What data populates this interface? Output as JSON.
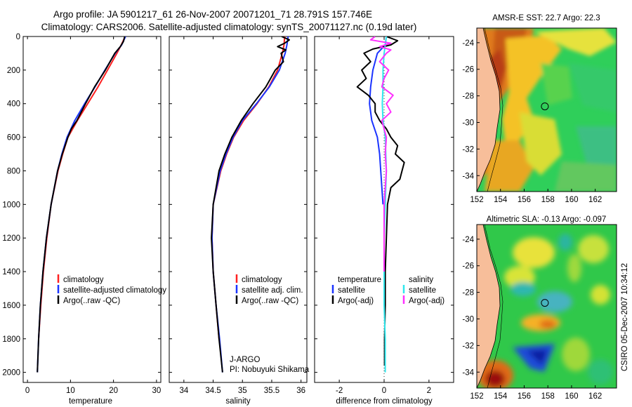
{
  "figure": {
    "title_line1": "Argo profile: JA 5901217_61 26-Nov-2007 20071201_71 28.791S 157.746E",
    "title_line2": "Climatology: CARS2006. Satellite-adjusted climatology: synTS_20071127.nc (0.19d later)",
    "credit": "CSIRO 05-Dec-2007 10:34:12"
  },
  "colors": {
    "climatology": "#ff2020",
    "satellite": "#1a33ff",
    "argo": "#000000",
    "satellite_salinity": "#2fe8ee",
    "argo_salinity": "#ff30ff",
    "land": "#f7be9a"
  },
  "chart_data": [
    {
      "type": "line",
      "id": "temperature",
      "xlabel": "temperature",
      "ylabel": "",
      "xlim": [
        -1,
        31
      ],
      "ylim": [
        2060,
        0
      ],
      "xticks": [
        0,
        10,
        20,
        30
      ],
      "yticks": [
        0,
        200,
        400,
        600,
        800,
        1000,
        1200,
        1400,
        1600,
        1800,
        2000
      ],
      "legend": [
        "climatology",
        "satellite-adjusted climatology",
        "Argo(..raw -QC)"
      ],
      "series": [
        {
          "name": "climatology",
          "color_key": "climatology",
          "depth": [
            0,
            50,
            100,
            200,
            300,
            400,
            500,
            600,
            700,
            800,
            1000,
            1200,
            1400,
            1600,
            1800
          ],
          "values": [
            22.7,
            21.8,
            20.8,
            18.6,
            16.4,
            14.0,
            11.6,
            9.4,
            8.2,
            7.1,
            5.5,
            4.5,
            3.7,
            3.1,
            2.6
          ]
        },
        {
          "name": "satellite-adjusted climatology",
          "color_key": "satellite",
          "depth": [
            0,
            50,
            100,
            200,
            300,
            400,
            500,
            600,
            700,
            800,
            1000,
            1200,
            1400,
            1600,
            1800,
            2000
          ],
          "values": [
            22.8,
            21.9,
            20.4,
            18.0,
            15.7,
            13.3,
            11.0,
            9.2,
            8.0,
            7.0,
            5.5,
            4.4,
            3.6,
            3.0,
            2.6,
            2.3
          ]
        },
        {
          "name": "Argo(..raw -QC)",
          "color_key": "argo",
          "depth": [
            0,
            30,
            60,
            100,
            200,
            300,
            400,
            500,
            550,
            600,
            700,
            800,
            1000,
            1200,
            1400,
            1600,
            1800,
            2000
          ],
          "values": [
            22.6,
            22.3,
            21.6,
            20.3,
            18.1,
            15.6,
            13.5,
            11.5,
            10.2,
            9.4,
            8.1,
            7.0,
            5.5,
            4.4,
            3.6,
            3.0,
            2.6,
            2.3
          ]
        }
      ]
    },
    {
      "type": "line",
      "id": "salinity",
      "xlabel": "salinity",
      "ylabel": "",
      "xlim": [
        33.75,
        36.1
      ],
      "ylim": [
        2060,
        0
      ],
      "xticks": [
        34,
        34.5,
        35,
        35.5,
        36
      ],
      "legend": [
        "climatology",
        "satellite adj. clim.",
        "Argo(..raw -QC)"
      ],
      "annotation": [
        "J-ARGO",
        "PI: Nobuyuki Shikama"
      ],
      "series": [
        {
          "name": "climatology",
          "color_key": "climatology",
          "depth": [
            0,
            50,
            100,
            200,
            300,
            400,
            500,
            600,
            700,
            800,
            1000,
            1200,
            1400,
            1600,
            1800
          ],
          "values": [
            35.72,
            35.71,
            35.68,
            35.6,
            35.45,
            35.25,
            35.02,
            34.85,
            34.73,
            34.63,
            34.5,
            34.48,
            34.5,
            34.55,
            34.6
          ]
        },
        {
          "name": "satellite adj. clim.",
          "color_key": "satellite",
          "depth": [
            0,
            50,
            100,
            200,
            300,
            400,
            500,
            600,
            700,
            800,
            1000,
            1200,
            1400,
            1600,
            1800,
            2000
          ],
          "values": [
            35.78,
            35.76,
            35.73,
            35.63,
            35.46,
            35.24,
            35.0,
            34.84,
            34.72,
            34.62,
            34.5,
            34.48,
            34.5,
            34.55,
            34.61,
            34.66
          ]
        },
        {
          "name": "Argo(..raw -QC)",
          "color_key": "argo",
          "depth": [
            0,
            20,
            40,
            60,
            80,
            100,
            150,
            200,
            300,
            400,
            500,
            600,
            700,
            800,
            1000,
            1200,
            1400,
            1600,
            1800,
            2000
          ],
          "values": [
            35.67,
            35.8,
            35.72,
            35.6,
            35.74,
            35.66,
            35.7,
            35.56,
            35.4,
            35.18,
            34.98,
            34.82,
            34.7,
            34.6,
            34.5,
            34.47,
            34.5,
            34.55,
            34.6,
            34.66
          ]
        }
      ]
    },
    {
      "type": "line",
      "id": "difference",
      "xlabel": "difference from climatology",
      "ylabel": "",
      "xlim": [
        -3.1,
        3.1
      ],
      "ylim": [
        2060,
        0
      ],
      "xticks": [
        -2,
        0,
        2
      ],
      "legend_temperature": {
        "header": "temperature",
        "items": [
          "satellite",
          "Argo(-adj)"
        ]
      },
      "legend_salinity": {
        "header": "salinity",
        "items": [
          "satellite",
          "Argo(-adj)"
        ]
      },
      "series": [
        {
          "name": "temperature satellite",
          "color_key": "satellite",
          "depth": [
            0,
            50,
            100,
            200,
            300,
            400,
            500,
            600,
            700,
            800,
            900,
            1000
          ],
          "values": [
            0.1,
            0.05,
            -0.3,
            -0.5,
            -0.6,
            -0.65,
            -0.55,
            -0.3,
            -0.2,
            -0.15,
            -0.1,
            -0.05
          ]
        },
        {
          "name": "temperature Argo(-adj)",
          "color_key": "argo",
          "depth": [
            0,
            25,
            50,
            75,
            100,
            150,
            200,
            250,
            300,
            350,
            400,
            450,
            500,
            550,
            600,
            650,
            700,
            750,
            800,
            850,
            900,
            1000,
            1200,
            1400,
            1600,
            1800,
            1960
          ],
          "values": [
            0.1,
            0.6,
            0.3,
            -0.5,
            -0.9,
            -0.6,
            -1.0,
            -0.8,
            -1.2,
            -0.7,
            -0.4,
            -0.4,
            -0.2,
            0.1,
            0.3,
            0.6,
            0.5,
            0.9,
            0.8,
            0.7,
            0.3,
            0.15,
            0.1,
            0.05,
            0.05,
            0.02,
            0.02
          ]
        },
        {
          "name": "salinity satellite",
          "color_key": "satellite_salinity",
          "depth": [
            0,
            50,
            100,
            200,
            300,
            400,
            500,
            600,
            800,
            1000,
            1200,
            1400,
            1600,
            1800,
            2000
          ],
          "values": [
            0.1,
            0.05,
            0.0,
            -0.05,
            -0.05,
            -0.08,
            -0.05,
            0.05,
            0.1,
            0.05,
            0.0,
            0.0,
            0.0,
            0.05,
            0.05
          ]
        },
        {
          "name": "salinity Argo(-adj)",
          "color_key": "argo_salinity",
          "depth": [
            0,
            20,
            40,
            60,
            80,
            100,
            150,
            200,
            250,
            300,
            350,
            400,
            450,
            500,
            550,
            600,
            700,
            800,
            900,
            1000,
            1200,
            1400
          ],
          "values": [
            -0.4,
            -0.6,
            0.3,
            -0.2,
            0.3,
            0.1,
            -0.2,
            0.2,
            0.0,
            -0.1,
            0.4,
            0.1,
            0.3,
            -0.1,
            0.0,
            0.1,
            0.05,
            0.1,
            0.05,
            0.0,
            0.0,
            0.0
          ]
        }
      ]
    },
    {
      "type": "heatmap",
      "id": "amsre-sst",
      "title": "AMSR-E SST: 22.7 Argo: 22.3",
      "xlim": [
        152,
        163.8
      ],
      "ylim": [
        -35.2,
        -22.9
      ],
      "xticks": [
        152,
        154,
        156,
        158,
        160,
        162
      ],
      "yticks": [
        -24,
        -26,
        -28,
        -30,
        -32,
        -34
      ],
      "argo_marker": {
        "lon": 157.746,
        "lat": -28.791
      }
    },
    {
      "type": "heatmap",
      "id": "altimetric-sla",
      "title": "Altimetric SLA: -0.13 Argo: -0.097",
      "xlim": [
        152,
        163.8
      ],
      "ylim": [
        -35.2,
        -22.9
      ],
      "xticks": [
        152,
        154,
        156,
        158,
        160,
        162
      ],
      "yticks": [
        -24,
        -26,
        -28,
        -30,
        -32,
        -34
      ],
      "argo_marker": {
        "lon": 157.746,
        "lat": -28.791
      }
    }
  ]
}
